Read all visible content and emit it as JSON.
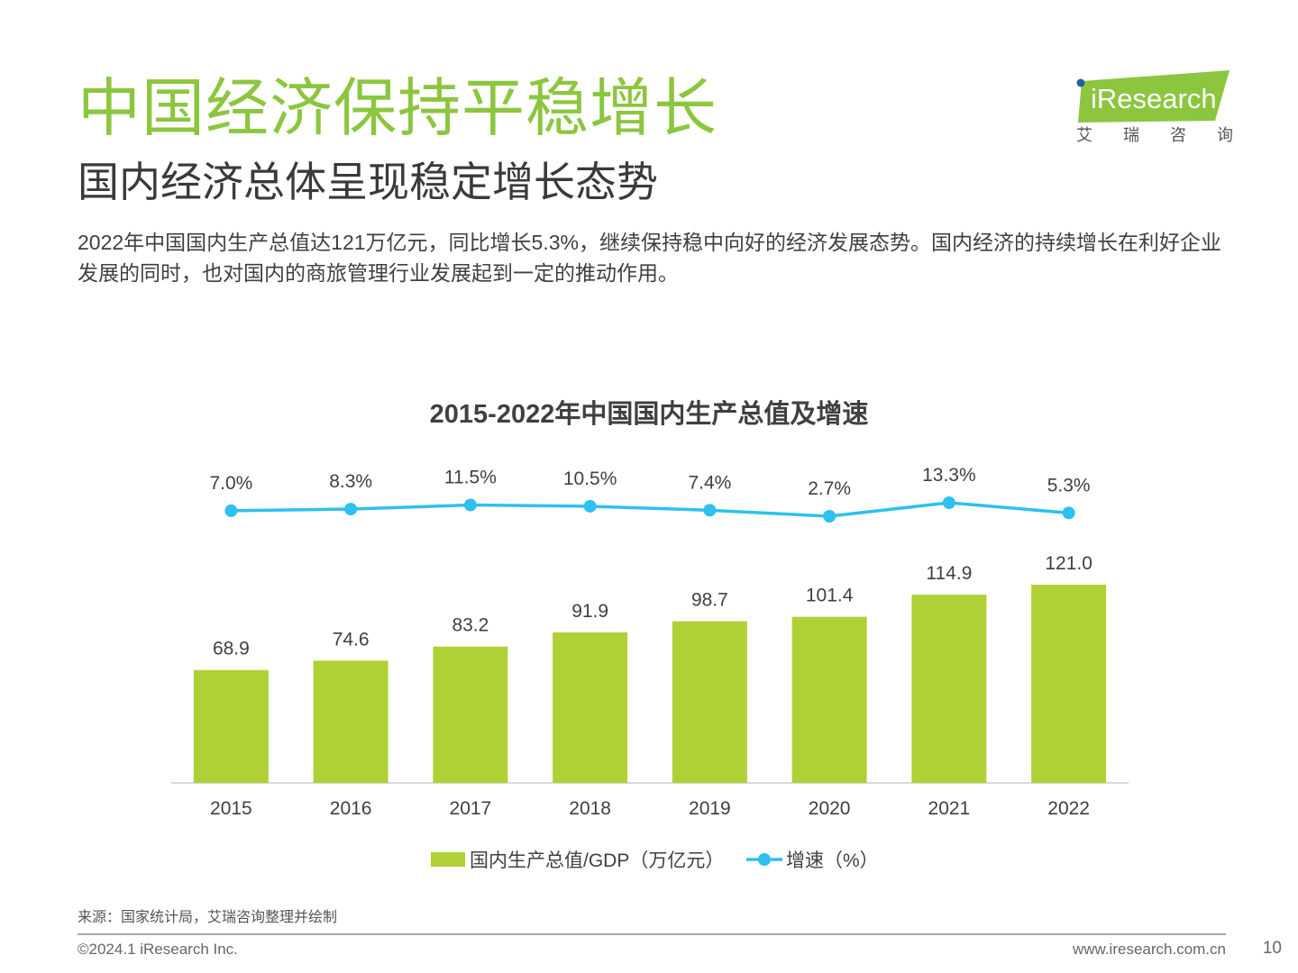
{
  "header": {
    "title": "中国经济保持平稳增长",
    "subtitle": "国内经济总体呈现稳定增长态势",
    "intro": "2022年中国国内生产总值达121万亿元，同比增长5.3%，继续保持稳中向好的经济发展态势。国内经济的持续增长在利好企业发展的同时，也对国内的商旅管理行业发展起到一定的推动作用。"
  },
  "logo": {
    "brand": "iResearch",
    "cn": "艾瑞咨询",
    "brand_color": "#8cc63f",
    "dot_color": "#1f5fa8"
  },
  "colors": {
    "title_green": "#8cc63f",
    "bar_green": "#b0d135",
    "line_blue": "#2ec0f0"
  },
  "chart_data": {
    "type": "bar",
    "title": "2015-2022年中国国内生产总值及增速",
    "categories": [
      "2015",
      "2016",
      "2017",
      "2018",
      "2019",
      "2020",
      "2021",
      "2022"
    ],
    "series": [
      {
        "name": "国内生产总值/GDP（万亿元）",
        "type": "bar",
        "values": [
          68.9,
          74.6,
          83.2,
          91.9,
          98.7,
          101.4,
          114.9,
          121.0
        ],
        "labels": [
          "68.9",
          "74.6",
          "83.2",
          "91.9",
          "98.7",
          "101.4",
          "114.9",
          "121.0"
        ],
        "color": "#b0d135"
      },
      {
        "name": "增速（%）",
        "type": "line",
        "values": [
          7.0,
          8.3,
          11.5,
          10.5,
          7.4,
          2.7,
          13.3,
          5.3
        ],
        "labels": [
          "7.0%",
          "8.3%",
          "11.5%",
          "10.5%",
          "7.4%",
          "2.7%",
          "13.3%",
          "5.3%"
        ],
        "color": "#2ec0f0"
      }
    ],
    "legend_position": "bottom",
    "grid": false
  },
  "footer": {
    "source": "来源：国家统计局，艾瑞咨询整理并绘制",
    "copyright": "©2024.1 iResearch Inc.",
    "website": "www.iresearch.com.cn",
    "page": "10"
  }
}
